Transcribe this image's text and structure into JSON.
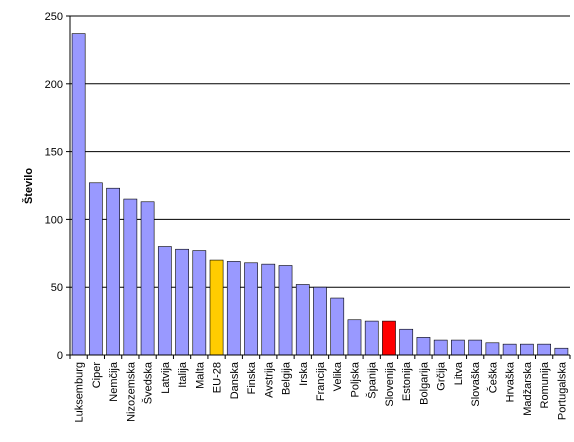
{
  "chart_data": {
    "type": "bar",
    "title": "",
    "xlabel": "",
    "ylabel": "Število",
    "ylim": [
      0,
      250
    ],
    "yticks": [
      0,
      50,
      100,
      150,
      200,
      250
    ],
    "grid": true,
    "categories": [
      "Luksemburg",
      "Ciper",
      "Nemčija",
      "Nizozemska",
      "Švedska",
      "Latvija",
      "Italija",
      "Malta",
      "EU-28",
      "Danska",
      "Finska",
      "Avstrija",
      "Belgija",
      "Irska",
      "Francija",
      "Velika",
      "Poljska",
      "Španija",
      "Slovenija",
      "Estonija",
      "Bolgarija",
      "Grčija",
      "Litva",
      "Slovaška",
      "Češka",
      "Hrvaška",
      "Madžarska",
      "Romunija",
      "Portugalska"
    ],
    "values": [
      237,
      127,
      123,
      115,
      113,
      80,
      78,
      77,
      70,
      69,
      68,
      67,
      66,
      52,
      50,
      42,
      26,
      25,
      25,
      19,
      13,
      11,
      11,
      11,
      9,
      8,
      8,
      8,
      5
    ],
    "colors": {
      "default": "#9999ff",
      "highlight_eu": "#ffcc00",
      "highlight_si": "#ff0000",
      "bar_border": "#000000",
      "grid": "#000000"
    },
    "highlights": {
      "EU-28": "highlight_eu",
      "Slovenija": "highlight_si"
    }
  }
}
